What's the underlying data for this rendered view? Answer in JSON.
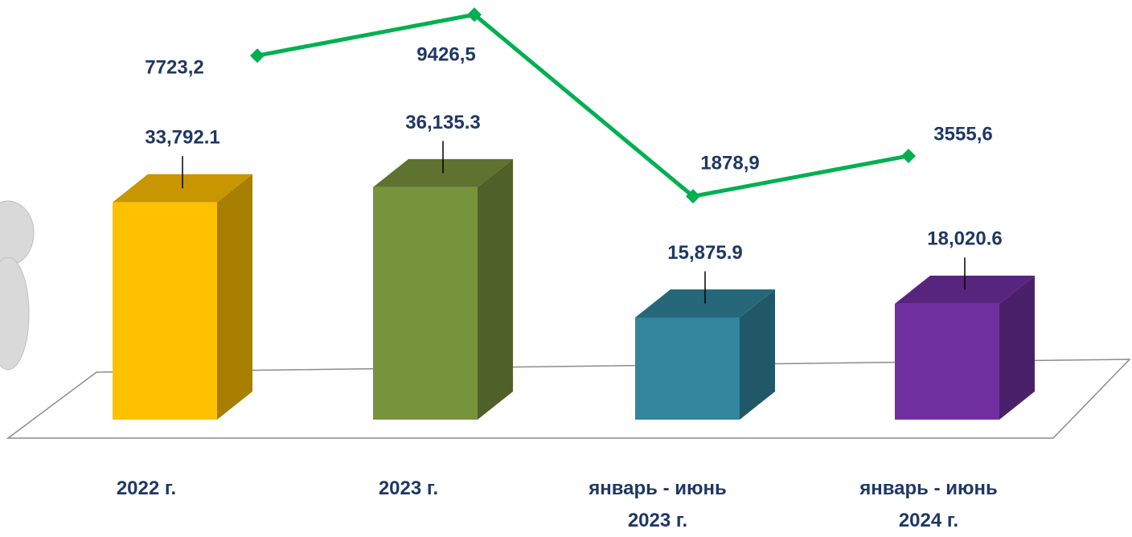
{
  "chart_data": {
    "type": "bar",
    "categories": [
      "2022 г.",
      "2023 г.",
      "январь - июнь\n2023 г.",
      "январь - июнь\n2024 г."
    ],
    "series": [
      {
        "type": "bar",
        "values": [
          33792.1,
          36135.3,
          15875.9,
          18020.6
        ],
        "value_labels": [
          "33,792.1",
          "36,135.3",
          "15,875.9",
          "18,020.6"
        ],
        "colors": [
          "#FFC000",
          "#77933C",
          "#31859C",
          "#7030A0"
        ]
      },
      {
        "type": "line",
        "axis": "y2",
        "values": [
          7723.2,
          9426.5,
          1878.9,
          3555.6
        ],
        "value_labels": [
          "7723,2",
          "9426,5",
          "1878,9",
          "3555,6"
        ],
        "color": "#00B050"
      }
    ],
    "ylim": [
      0,
      64000
    ],
    "y2lim": [
      -7400,
      9700
    ]
  }
}
